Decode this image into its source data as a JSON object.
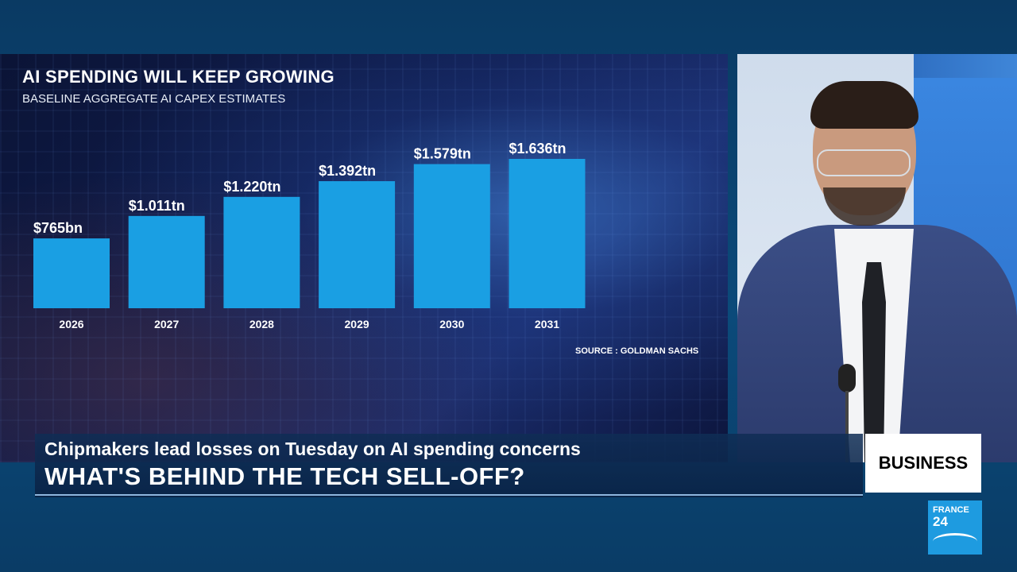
{
  "chart_data": {
    "type": "bar",
    "title": "AI SPENDING WILL KEEP GROWING",
    "subtitle": "BASELINE AGGREGATE AI CAPEX ESTIMATES",
    "categories": [
      "2026",
      "2027",
      "2028",
      "2029",
      "2030",
      "2031"
    ],
    "values": [
      0.765,
      1.011,
      1.22,
      1.392,
      1.579,
      1.636
    ],
    "value_unit": "trillion USD",
    "data_labels": [
      "$765bn",
      "$1.011tn",
      "$1.220tn",
      "$1.392tn",
      "$1.579tn",
      "$1.636tn"
    ],
    "xlabel": "",
    "ylabel": "",
    "ylim": [
      0,
      1.636
    ],
    "grid": false,
    "legend": "none",
    "bar_color": "#1a9fe3",
    "annotations": [
      "SOURCE : GOLDMAN SACHS"
    ]
  },
  "lower_third": {
    "subline": "Chipmakers lead losses on Tuesday on AI spending concerns",
    "headline": "WHAT'S BEHIND THE TECH SELL-OFF?"
  },
  "tag": "BUSINESS",
  "logo": {
    "line1": "FRANCE",
    "line2": "24"
  },
  "colors": {
    "accent": "#1a9fe3",
    "background": "#0b4a7a"
  }
}
